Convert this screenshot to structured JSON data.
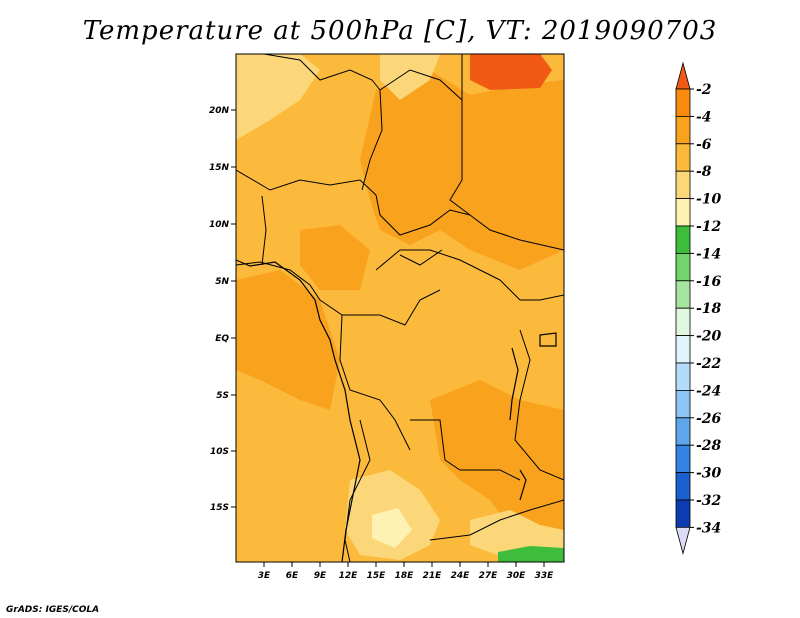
{
  "title": "Temperature at 500hPa [C], VT: 2019090703",
  "footer": "GrADS: IGES/COLA",
  "map": {
    "lat_labels": [
      "20N",
      "15N",
      "10N",
      "5N",
      "EQ",
      "5S",
      "10S",
      "15S"
    ],
    "lon_labels": [
      "3E",
      "6E",
      "9E",
      "12E",
      "15E",
      "18E",
      "21E",
      "24E",
      "27E",
      "30E",
      "33E"
    ],
    "background_color": "#FBBA3C"
  },
  "colorbar": {
    "labels": [
      "-2",
      "-4",
      "-6",
      "-8",
      "-10",
      "-12",
      "-14",
      "-16",
      "-18",
      "-20",
      "-22",
      "-24",
      "-26",
      "-28",
      "-30",
      "-32",
      "-34"
    ],
    "colors": [
      "#F05A14",
      "#F98A10",
      "#F9A21E",
      "#FBBA3C",
      "#FCD77A",
      "#FDF2B4",
      "#3EBD3C",
      "#71D46D",
      "#A6E5A0",
      "#E0F8E0",
      "#E0F4FB",
      "#B4DCF8",
      "#8DC4F4",
      "#5DA6EC",
      "#3382E4",
      "#1A5FCF",
      "#0C3DB0",
      "#10207A"
    ]
  }
}
